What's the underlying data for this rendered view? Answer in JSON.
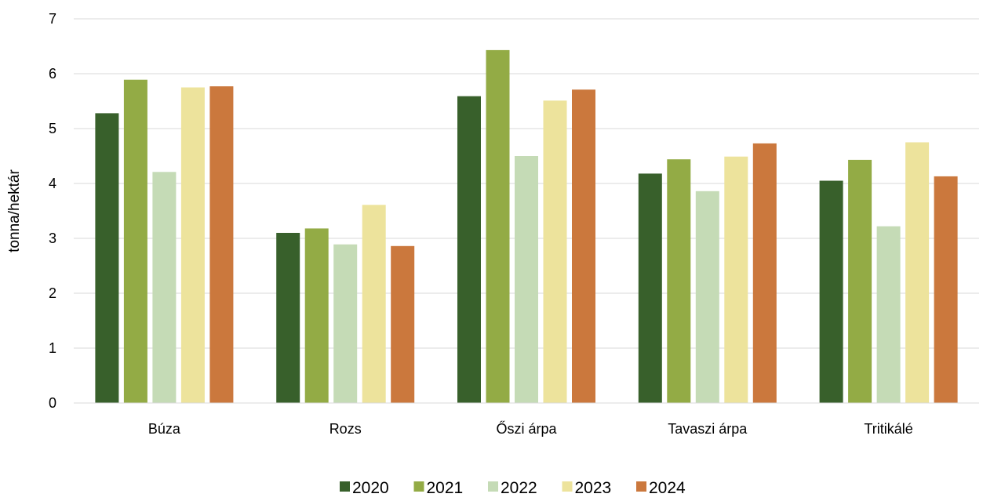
{
  "chart_data": {
    "type": "bar",
    "title": "",
    "xlabel": "",
    "ylabel": "tonna/hektár",
    "ylim": [
      0,
      7
    ],
    "yticks": [
      0,
      1,
      2,
      3,
      4,
      5,
      6,
      7
    ],
    "grid": true,
    "legend_position": "bottom",
    "categories": [
      "Búza",
      "Rozs",
      "Őszi árpa",
      "Tavaszi árpa",
      "Tritikálé"
    ],
    "series": [
      {
        "name": "2020",
        "color": "#38602b",
        "values": [
          5.28,
          3.1,
          5.59,
          4.18,
          4.05
        ]
      },
      {
        "name": "2021",
        "color": "#93ab45",
        "values": [
          5.89,
          3.18,
          6.43,
          4.44,
          4.43
        ]
      },
      {
        "name": "2022",
        "color": "#c5dbb6",
        "values": [
          4.21,
          2.89,
          4.5,
          3.86,
          3.22
        ]
      },
      {
        "name": "2023",
        "color": "#ede39c",
        "values": [
          5.75,
          3.61,
          5.51,
          4.49,
          4.75
        ]
      },
      {
        "name": "2024",
        "color": "#cb783d",
        "values": [
          5.77,
          2.86,
          5.71,
          4.73,
          4.13
        ]
      }
    ]
  }
}
